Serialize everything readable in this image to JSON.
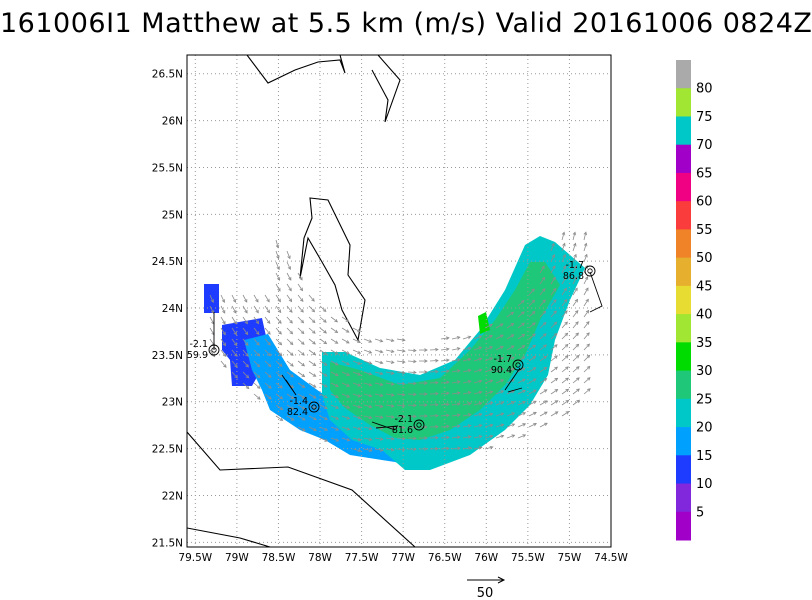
{
  "title": "161006I1 Matthew at 5.5 km (m/s) Valid 20161006 0824Z",
  "map": {
    "lon_range": [
      -79.6,
      -74.5
    ],
    "lat_range": [
      21.45,
      26.7
    ],
    "lat_ticks": [
      "26.5N",
      "26N",
      "25.5N",
      "25N",
      "24.5N",
      "24N",
      "23.5N",
      "23N",
      "22.5N",
      "22N",
      "21.5N"
    ],
    "lon_ticks": [
      "79.5W",
      "79W",
      "78.5W",
      "78W",
      "77.5W",
      "77W",
      "76.5W",
      "76W",
      "75.5W",
      "75W",
      "74.5W"
    ],
    "grid": true
  },
  "colorbar": {
    "labels": [
      "5",
      "10",
      "15",
      "20",
      "25",
      "30",
      "35",
      "40",
      "45",
      "50",
      "55",
      "60",
      "65",
      "70",
      "75",
      "80"
    ],
    "colors": [
      "#a000c8",
      "#8228dc",
      "#1e3cff",
      "#00a0ff",
      "#00c8c8",
      "#1ec878",
      "#00dc00",
      "#a0e632",
      "#e6dc32",
      "#e6af2d",
      "#f08228",
      "#fa3c3c",
      "#f00082",
      "#a000c8",
      "#00c8c8",
      "#a0e632",
      "#aaaaaa"
    ]
  },
  "stations": [
    {
      "label_top": "-2.1",
      "label_bottom": "59.9"
    },
    {
      "label_top": "-1.4",
      "label_bottom": "82.4"
    },
    {
      "label_top": "-2.1",
      "label_bottom": "81.6"
    },
    {
      "label_top": "-1.7",
      "label_bottom": "90.4"
    },
    {
      "label_top": "-1.7",
      "label_bottom": "86.8"
    }
  ],
  "reference_vector": {
    "label": "50"
  }
}
